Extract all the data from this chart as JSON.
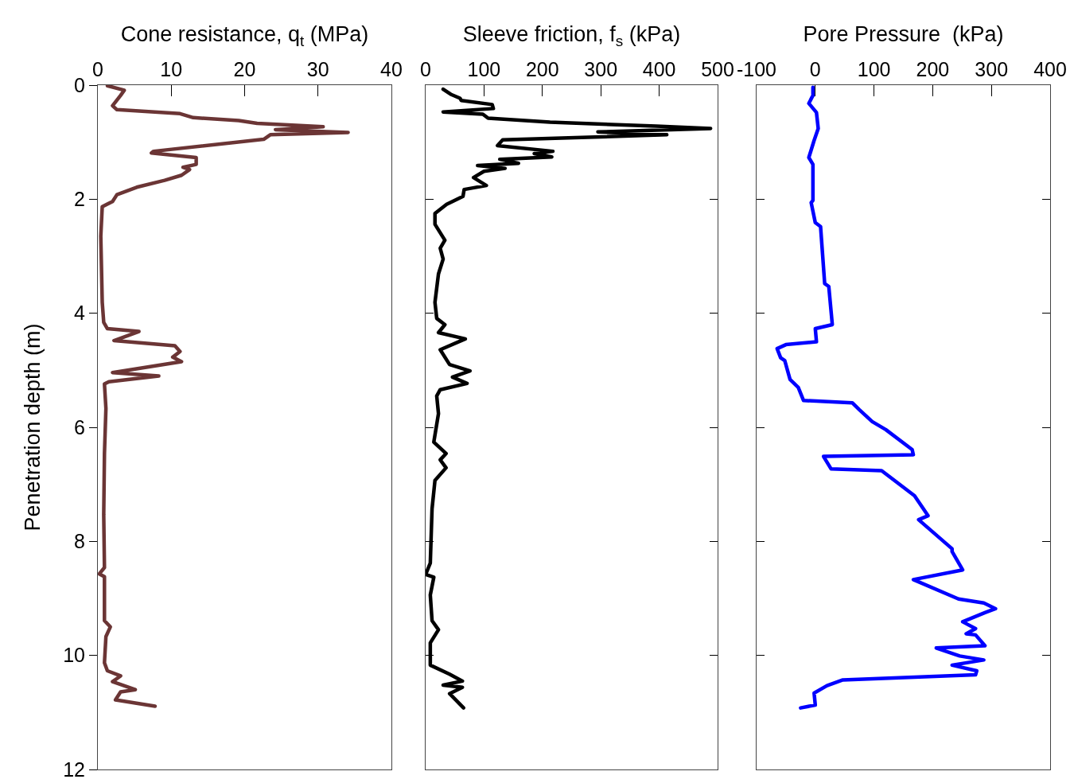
{
  "chart_data": [
    {
      "type": "line",
      "xlabel": "Cone resistance, q$_{t}$ (MPa)",
      "ylabel": "Penetration depth (m)",
      "xlim": [
        0,
        40
      ],
      "xticks": [
        0,
        10,
        20,
        30,
        40
      ],
      "ylim": [
        12,
        0
      ],
      "yticks": [
        0,
        2,
        4,
        6,
        8,
        10,
        12
      ],
      "grid": false,
      "series": [
        {
          "color": "#6b3535",
          "x": [
            1.3,
            3.6,
            3.1,
            2.0,
            2.6,
            11.2,
            13.0,
            19.2,
            21.7,
            30.7,
            24.2,
            34.1,
            23.5,
            22.6,
            7.6,
            7.3,
            13.4,
            13.4,
            11.6,
            12.5,
            11.4,
            9.1,
            5.3,
            2.6,
            2.0,
            0.6,
            0.4,
            0.6,
            0.8,
            1.3,
            5.6,
            2.2,
            10.5,
            11.2,
            10.2,
            11.4,
            2.0,
            8.3,
            1.5,
            0.9,
            1.1,
            0.9,
            0.8,
            0.9,
            0.2,
            0.9,
            0.9,
            1.7,
            1.1,
            0.9,
            1.3,
            3.1,
            2.0,
            5.1,
            3.1,
            2.4,
            7.8
          ],
          "values": [
            0.01,
            0.09,
            0.18,
            0.36,
            0.43,
            0.5,
            0.57,
            0.62,
            0.67,
            0.73,
            0.78,
            0.83,
            0.87,
            0.95,
            1.16,
            1.19,
            1.27,
            1.39,
            1.44,
            1.48,
            1.58,
            1.67,
            1.79,
            1.92,
            2.04,
            2.13,
            2.65,
            3.81,
            4.16,
            4.27,
            4.32,
            4.48,
            4.57,
            4.67,
            4.77,
            4.85,
            5.04,
            5.1,
            5.2,
            5.24,
            5.67,
            6.46,
            7.53,
            8.46,
            8.57,
            8.62,
            9.39,
            9.5,
            9.67,
            10.13,
            10.27,
            10.36,
            10.46,
            10.6,
            10.64,
            10.78,
            10.89
          ]
        }
      ]
    },
    {
      "type": "line",
      "xlabel": "Sleeve friction, f$_{s}$ (kPa)",
      "xlim": [
        0,
        500
      ],
      "xticks": [
        0,
        100,
        200,
        300,
        400,
        500
      ],
      "ylim": [
        12,
        0
      ],
      "yticks": [
        0,
        2,
        4,
        6,
        8,
        10,
        12
      ],
      "tick_labels": "x",
      "grid": false,
      "series": [
        {
          "color": "#000000",
          "x": [
            30,
            43,
            59,
            61,
            114,
            116,
            30,
            98,
            107,
            213,
            395,
            488,
            295,
            413,
            132,
            123,
            218,
            186,
            216,
            127,
            159,
            89,
            136,
            100,
            82,
            104,
            66,
            64,
            36,
            16,
            16,
            30,
            33,
            25,
            30,
            22,
            16,
            19,
            33,
            22,
            68,
            25,
            41,
            76,
            46,
            71,
            25,
            19,
            22,
            14,
            35,
            25,
            35,
            16,
            11,
            8,
            0,
            14,
            8,
            11,
            22,
            8,
            8,
            41,
            63,
            30,
            63,
            41,
            65
          ],
          "values": [
            0.07,
            0.16,
            0.23,
            0.27,
            0.34,
            0.41,
            0.47,
            0.51,
            0.58,
            0.65,
            0.72,
            0.76,
            0.82,
            0.87,
            0.96,
            1.06,
            1.16,
            1.2,
            1.26,
            1.3,
            1.37,
            1.41,
            1.46,
            1.51,
            1.62,
            1.76,
            1.83,
            1.95,
            2.09,
            2.25,
            2.44,
            2.67,
            2.72,
            2.86,
            3.05,
            3.31,
            3.81,
            4.09,
            4.2,
            4.34,
            4.45,
            4.64,
            4.9,
            5.01,
            5.12,
            5.23,
            5.34,
            5.45,
            5.76,
            6.26,
            6.46,
            6.57,
            6.71,
            6.93,
            7.43,
            8.38,
            8.58,
            8.63,
            8.94,
            9.39,
            9.55,
            9.78,
            10.17,
            10.33,
            10.45,
            10.52,
            10.56,
            10.67,
            10.92
          ]
        }
      ]
    },
    {
      "type": "line",
      "xlabel": "Pore Pressure  (kPa)",
      "xlim": [
        -100,
        400
      ],
      "xticks": [
        -100,
        0,
        100,
        200,
        300,
        400
      ],
      "ylim": [
        12,
        0
      ],
      "yticks": [
        0,
        2,
        4,
        6,
        8,
        10,
        12
      ],
      "tick_labels": "x",
      "grid": false,
      "series": [
        {
          "color": "#0000ff",
          "x": [
            -4,
            -4,
            -11,
            2,
            5,
            -2,
            -11,
            -4,
            -4,
            -7,
            0,
            9,
            16,
            23,
            29,
            0,
            2,
            -50,
            -65,
            -59,
            -52,
            -43,
            -29,
            -20,
            63,
            75,
            97,
            120,
            165,
            167,
            14,
            27,
            113,
            169,
            192,
            176,
            233,
            233,
            251,
            167,
            244,
            287,
            307,
            289,
            251,
            273,
            257,
            273,
            289,
            206,
            246,
            287,
            233,
            275,
            273,
            47,
            20,
            -2,
            0,
            -25
          ],
          "values": [
            0.04,
            0.18,
            0.32,
            0.48,
            0.76,
            0.97,
            1.27,
            1.39,
            2.02,
            2.06,
            2.41,
            2.48,
            3.48,
            3.53,
            4.2,
            4.27,
            4.5,
            4.55,
            4.62,
            4.78,
            4.83,
            5.16,
            5.3,
            5.53,
            5.57,
            5.69,
            5.9,
            6.04,
            6.39,
            6.48,
            6.51,
            6.73,
            6.76,
            7.2,
            7.55,
            7.62,
            8.13,
            8.18,
            8.5,
            8.67,
            9.01,
            9.08,
            9.18,
            9.25,
            9.41,
            9.53,
            9.62,
            9.64,
            9.83,
            9.87,
            10.01,
            10.08,
            10.17,
            10.27,
            10.34,
            10.43,
            10.53,
            10.66,
            10.87,
            10.92
          ]
        }
      ]
    }
  ]
}
